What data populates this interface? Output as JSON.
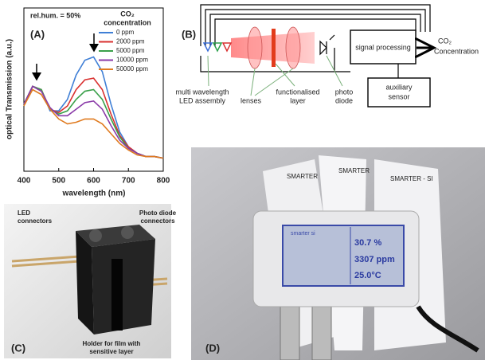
{
  "chart_data": {
    "type": "line",
    "panel_label": "(A)",
    "annotation": "rel.hum. = 50%",
    "legend_title": [
      "CO₂",
      "concentration"
    ],
    "x_label": "wavelength (nm)",
    "y_label": "optical Transmission (a.u.)",
    "x": [
      400,
      425,
      450,
      475,
      500,
      525,
      550,
      575,
      600,
      625,
      650,
      675,
      700,
      725,
      750,
      775,
      800
    ],
    "series": [
      {
        "name": "0 ppm",
        "color": "#3f7fd6",
        "values": [
          0.41,
          0.52,
          0.5,
          0.37,
          0.37,
          0.44,
          0.59,
          0.68,
          0.7,
          0.61,
          0.41,
          0.24,
          0.15,
          0.11,
          0.09,
          0.09,
          0.08
        ]
      },
      {
        "name": "2000 ppm",
        "color": "#d9302f",
        "values": [
          0.41,
          0.52,
          0.5,
          0.38,
          0.36,
          0.4,
          0.5,
          0.56,
          0.57,
          0.5,
          0.35,
          0.22,
          0.15,
          0.11,
          0.09,
          0.09,
          0.08
        ]
      },
      {
        "name": "5000 ppm",
        "color": "#3aa04a",
        "values": [
          0.41,
          0.52,
          0.5,
          0.38,
          0.35,
          0.37,
          0.44,
          0.49,
          0.5,
          0.44,
          0.32,
          0.21,
          0.14,
          0.11,
          0.09,
          0.09,
          0.08
        ]
      },
      {
        "name": "10000 ppm",
        "color": "#8a3aa8",
        "values": [
          0.41,
          0.52,
          0.49,
          0.39,
          0.34,
          0.34,
          0.38,
          0.42,
          0.43,
          0.38,
          0.28,
          0.19,
          0.14,
          0.11,
          0.09,
          0.09,
          0.08
        ]
      },
      {
        "name": "50000 ppm",
        "color": "#e07b20",
        "values": [
          0.4,
          0.5,
          0.47,
          0.38,
          0.32,
          0.29,
          0.3,
          0.32,
          0.32,
          0.29,
          0.23,
          0.17,
          0.13,
          0.1,
          0.09,
          0.09,
          0.08
        ]
      }
    ],
    "xlim": [
      400,
      800
    ],
    "xticks": [
      400,
      500,
      600,
      700,
      800
    ],
    "ylim": [
      0,
      1
    ]
  },
  "diagram": {
    "label": "(B)",
    "signal_processing": "signal processing",
    "output": [
      "CO₂",
      "Concentration"
    ],
    "auxiliary_sensor": [
      "auxiliary",
      "sensor"
    ],
    "led_assembly": [
      "multi wavelength",
      "LED assembly"
    ],
    "lenses": "lenses",
    "functionalised_layer": [
      "functionalised",
      "layer"
    ],
    "photo_diode": [
      "photo",
      "diode"
    ]
  },
  "photo_c": {
    "label": "(C)",
    "led_connectors": [
      "LED",
      "connectors"
    ],
    "photo_diode_connectors": [
      "Photo diode",
      "connectors"
    ],
    "holder": [
      "Holder for film with",
      "sensitive layer"
    ]
  },
  "photo_d": {
    "label": "(D)",
    "cards": [
      "SMARTER",
      "SMARTER",
      "SMARTER - SI"
    ],
    "display": [
      "smarter si",
      "30.7 %",
      "3307 ppm",
      "25.0°C"
    ]
  }
}
